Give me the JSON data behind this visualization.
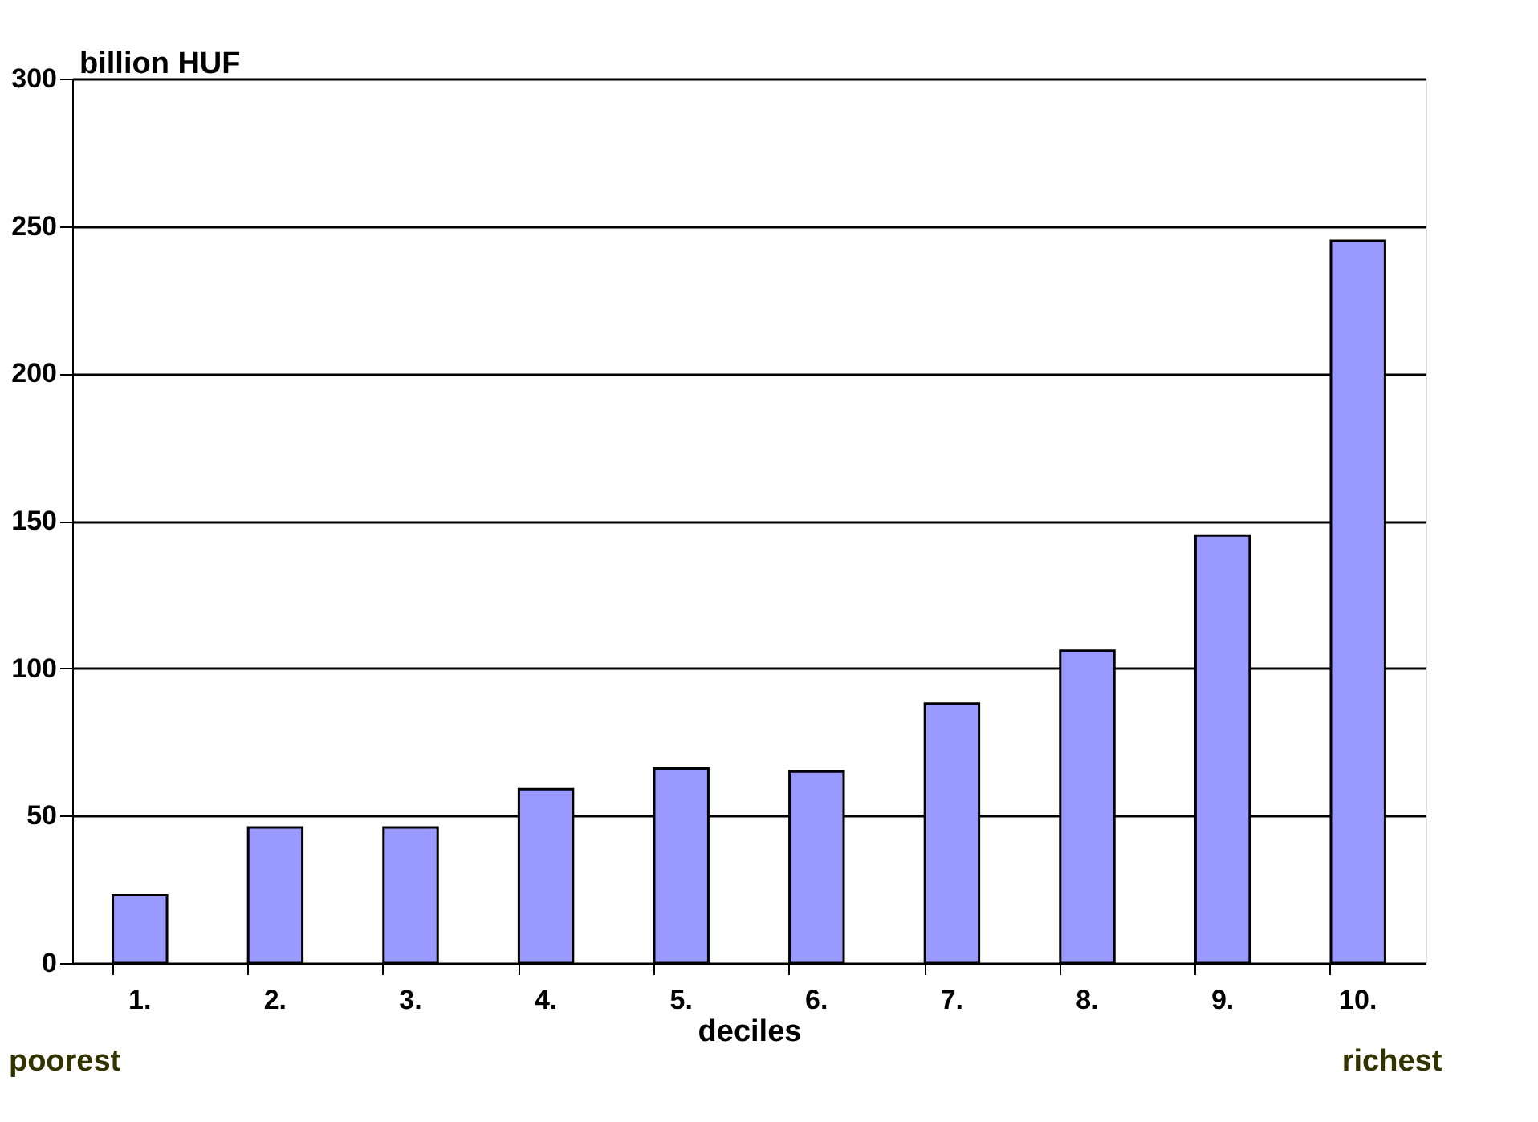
{
  "chart_data": {
    "type": "bar",
    "xlabel": "deciles",
    "ylabel": "billion HUF",
    "categories": [
      "1.",
      "2.",
      "3.",
      "4.",
      "5.",
      "6.",
      "7.",
      "8.",
      "9.",
      "10."
    ],
    "values": [
      23,
      46,
      46,
      59,
      66,
      65,
      88,
      106,
      145,
      245
    ],
    "color": "#9999ff",
    "ylim": [
      0,
      300
    ],
    "yticks": [
      0,
      50,
      100,
      150,
      200,
      250,
      300
    ],
    "grid": "y",
    "annotations": [
      "poorest",
      "richest"
    ]
  }
}
